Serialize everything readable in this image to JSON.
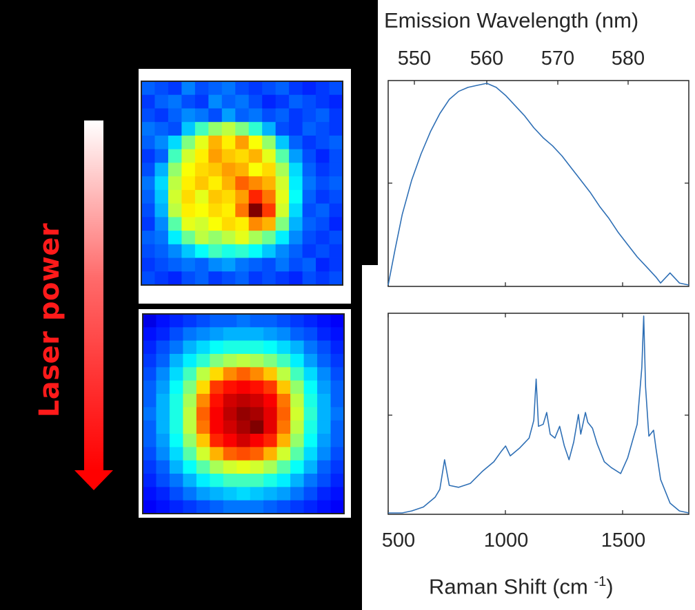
{
  "left_label": "Laser power",
  "colors": {
    "arrow": "#ff0000",
    "spectrum": "#2e6fb5",
    "background": "#000000"
  },
  "chart_data": [
    {
      "type": "heatmap",
      "panel": "low-laser-power",
      "colormap": "jet",
      "grid": 15,
      "values": [
        [
          0.22,
          0.2,
          0.18,
          0.25,
          0.2,
          0.22,
          0.24,
          0.2,
          0.18,
          0.2,
          0.22,
          0.18,
          0.16,
          0.18,
          0.2
        ],
        [
          0.18,
          0.22,
          0.24,
          0.2,
          0.18,
          0.26,
          0.22,
          0.24,
          0.2,
          0.16,
          0.18,
          0.22,
          0.2,
          0.18,
          0.16
        ],
        [
          0.2,
          0.18,
          0.22,
          0.26,
          0.24,
          0.2,
          0.28,
          0.22,
          0.24,
          0.2,
          0.22,
          0.18,
          0.2,
          0.22,
          0.18
        ],
        [
          0.24,
          0.22,
          0.2,
          0.32,
          0.44,
          0.52,
          0.56,
          0.5,
          0.42,
          0.3,
          0.2,
          0.18,
          0.22,
          0.2,
          0.18
        ],
        [
          0.22,
          0.26,
          0.34,
          0.5,
          0.6,
          0.7,
          0.64,
          0.72,
          0.62,
          0.52,
          0.32,
          0.22,
          0.18,
          0.2,
          0.22
        ],
        [
          0.18,
          0.22,
          0.44,
          0.58,
          0.64,
          0.72,
          0.68,
          0.66,
          0.7,
          0.6,
          0.46,
          0.28,
          0.2,
          0.16,
          0.2
        ],
        [
          0.2,
          0.3,
          0.52,
          0.62,
          0.66,
          0.68,
          0.72,
          0.7,
          0.62,
          0.66,
          0.54,
          0.34,
          0.22,
          0.18,
          0.2
        ],
        [
          0.24,
          0.34,
          0.56,
          0.64,
          0.68,
          0.64,
          0.7,
          0.78,
          0.74,
          0.7,
          0.58,
          0.36,
          0.24,
          0.2,
          0.22
        ],
        [
          0.22,
          0.32,
          0.58,
          0.66,
          0.6,
          0.68,
          0.66,
          0.72,
          0.84,
          0.76,
          0.6,
          0.38,
          0.22,
          0.18,
          0.2
        ],
        [
          0.2,
          0.3,
          0.56,
          0.64,
          0.62,
          0.66,
          0.64,
          0.76,
          1.0,
          0.82,
          0.58,
          0.34,
          0.2,
          0.22,
          0.18
        ],
        [
          0.18,
          0.26,
          0.46,
          0.6,
          0.58,
          0.62,
          0.66,
          0.64,
          0.74,
          0.7,
          0.5,
          0.3,
          0.22,
          0.2,
          0.16
        ],
        [
          0.22,
          0.24,
          0.36,
          0.48,
          0.56,
          0.52,
          0.56,
          0.6,
          0.54,
          0.48,
          0.36,
          0.26,
          0.2,
          0.18,
          0.2
        ],
        [
          0.2,
          0.22,
          0.26,
          0.32,
          0.38,
          0.44,
          0.4,
          0.42,
          0.38,
          0.32,
          0.26,
          0.22,
          0.18,
          0.2,
          0.18
        ],
        [
          0.18,
          0.2,
          0.22,
          0.24,
          0.22,
          0.26,
          0.28,
          0.24,
          0.22,
          0.2,
          0.24,
          0.2,
          0.22,
          0.16,
          0.18
        ],
        [
          0.2,
          0.18,
          0.16,
          0.2,
          0.22,
          0.18,
          0.2,
          0.22,
          0.18,
          0.2,
          0.18,
          0.16,
          0.2,
          0.18,
          0.2
        ]
      ]
    },
    {
      "type": "heatmap",
      "panel": "high-laser-power",
      "colormap": "jet",
      "grid": 15,
      "values": [
        [
          0.1,
          0.14,
          0.16,
          0.18,
          0.2,
          0.22,
          0.22,
          0.24,
          0.22,
          0.22,
          0.2,
          0.18,
          0.16,
          0.14,
          0.12
        ],
        [
          0.14,
          0.16,
          0.2,
          0.24,
          0.26,
          0.28,
          0.3,
          0.3,
          0.3,
          0.28,
          0.26,
          0.22,
          0.2,
          0.16,
          0.14
        ],
        [
          0.16,
          0.2,
          0.24,
          0.3,
          0.34,
          0.38,
          0.4,
          0.4,
          0.4,
          0.38,
          0.34,
          0.3,
          0.24,
          0.2,
          0.16
        ],
        [
          0.18,
          0.22,
          0.3,
          0.36,
          0.42,
          0.5,
          0.54,
          0.56,
          0.54,
          0.5,
          0.44,
          0.36,
          0.28,
          0.22,
          0.18
        ],
        [
          0.2,
          0.26,
          0.34,
          0.44,
          0.56,
          0.66,
          0.74,
          0.78,
          0.74,
          0.68,
          0.56,
          0.44,
          0.34,
          0.26,
          0.2
        ],
        [
          0.22,
          0.28,
          0.38,
          0.5,
          0.66,
          0.82,
          0.86,
          0.88,
          0.86,
          0.82,
          0.68,
          0.52,
          0.38,
          0.28,
          0.22
        ],
        [
          0.22,
          0.3,
          0.4,
          0.54,
          0.74,
          0.86,
          0.92,
          0.94,
          0.92,
          0.88,
          0.76,
          0.56,
          0.4,
          0.3,
          0.22
        ],
        [
          0.24,
          0.3,
          0.4,
          0.56,
          0.78,
          0.88,
          0.94,
          0.98,
          0.96,
          0.9,
          0.78,
          0.58,
          0.42,
          0.3,
          0.24
        ],
        [
          0.22,
          0.3,
          0.4,
          0.56,
          0.76,
          0.88,
          0.92,
          0.96,
          1.0,
          0.9,
          0.76,
          0.56,
          0.4,
          0.3,
          0.22
        ],
        [
          0.22,
          0.28,
          0.38,
          0.52,
          0.68,
          0.84,
          0.88,
          0.92,
          0.88,
          0.84,
          0.7,
          0.52,
          0.38,
          0.28,
          0.22
        ],
        [
          0.2,
          0.26,
          0.34,
          0.46,
          0.58,
          0.7,
          0.78,
          0.8,
          0.78,
          0.7,
          0.58,
          0.46,
          0.34,
          0.26,
          0.2
        ],
        [
          0.18,
          0.22,
          0.3,
          0.38,
          0.46,
          0.54,
          0.58,
          0.6,
          0.58,
          0.54,
          0.46,
          0.38,
          0.3,
          0.22,
          0.18
        ],
        [
          0.16,
          0.2,
          0.24,
          0.3,
          0.36,
          0.4,
          0.44,
          0.44,
          0.44,
          0.4,
          0.36,
          0.3,
          0.24,
          0.2,
          0.16
        ],
        [
          0.14,
          0.16,
          0.2,
          0.24,
          0.28,
          0.3,
          0.32,
          0.34,
          0.32,
          0.3,
          0.28,
          0.24,
          0.2,
          0.16,
          0.14
        ],
        [
          0.12,
          0.14,
          0.16,
          0.18,
          0.2,
          0.22,
          0.24,
          0.24,
          0.24,
          0.22,
          0.2,
          0.18,
          0.16,
          0.14,
          0.12
        ]
      ]
    },
    {
      "type": "line",
      "panel": "low-laser-power-spectrum",
      "top_axis_label": "Emission Wavelength (nm)",
      "top_ticks": [
        "550",
        "560",
        "570",
        "580"
      ],
      "xlim": [
        500,
        1780
      ],
      "x": [
        500,
        530,
        560,
        600,
        640,
        680,
        720,
        760,
        800,
        840,
        880,
        920,
        960,
        1000,
        1040,
        1080,
        1120,
        1160,
        1200,
        1240,
        1280,
        1320,
        1360,
        1400,
        1440,
        1480,
        1520,
        1560,
        1600,
        1640,
        1660,
        1700,
        1740,
        1780
      ],
      "y": [
        0.0,
        0.18,
        0.35,
        0.52,
        0.65,
        0.76,
        0.85,
        0.92,
        0.96,
        0.98,
        0.99,
        1.0,
        0.98,
        0.94,
        0.89,
        0.84,
        0.78,
        0.73,
        0.69,
        0.64,
        0.58,
        0.52,
        0.46,
        0.39,
        0.33,
        0.26,
        0.2,
        0.14,
        0.09,
        0.04,
        0.01,
        0.06,
        0.01,
        0.0
      ]
    },
    {
      "type": "line",
      "panel": "high-laser-power-spectrum",
      "xlabel": "Raman Shift (cm -1)",
      "xlim": [
        500,
        1780
      ],
      "bottom_ticks": [
        "500",
        "1000",
        "1500"
      ],
      "x": [
        500,
        560,
        600,
        650,
        700,
        720,
        740,
        760,
        800,
        850,
        900,
        950,
        980,
        1000,
        1020,
        1060,
        1100,
        1120,
        1130,
        1140,
        1160,
        1175,
        1190,
        1210,
        1230,
        1250,
        1270,
        1290,
        1310,
        1320,
        1340,
        1350,
        1370,
        1390,
        1420,
        1450,
        1490,
        1520,
        1560,
        1580,
        1588,
        1596,
        1610,
        1630,
        1640,
        1660,
        1700,
        1740,
        1780
      ],
      "y": [
        0.0,
        0.0,
        0.01,
        0.03,
        0.08,
        0.12,
        0.27,
        0.14,
        0.13,
        0.15,
        0.21,
        0.26,
        0.31,
        0.34,
        0.29,
        0.33,
        0.38,
        0.47,
        0.68,
        0.44,
        0.45,
        0.51,
        0.4,
        0.38,
        0.44,
        0.34,
        0.27,
        0.36,
        0.5,
        0.4,
        0.51,
        0.46,
        0.43,
        0.35,
        0.26,
        0.23,
        0.2,
        0.28,
        0.45,
        0.74,
        1.0,
        0.64,
        0.39,
        0.42,
        0.33,
        0.17,
        0.05,
        0.01,
        0.0
      ]
    }
  ]
}
